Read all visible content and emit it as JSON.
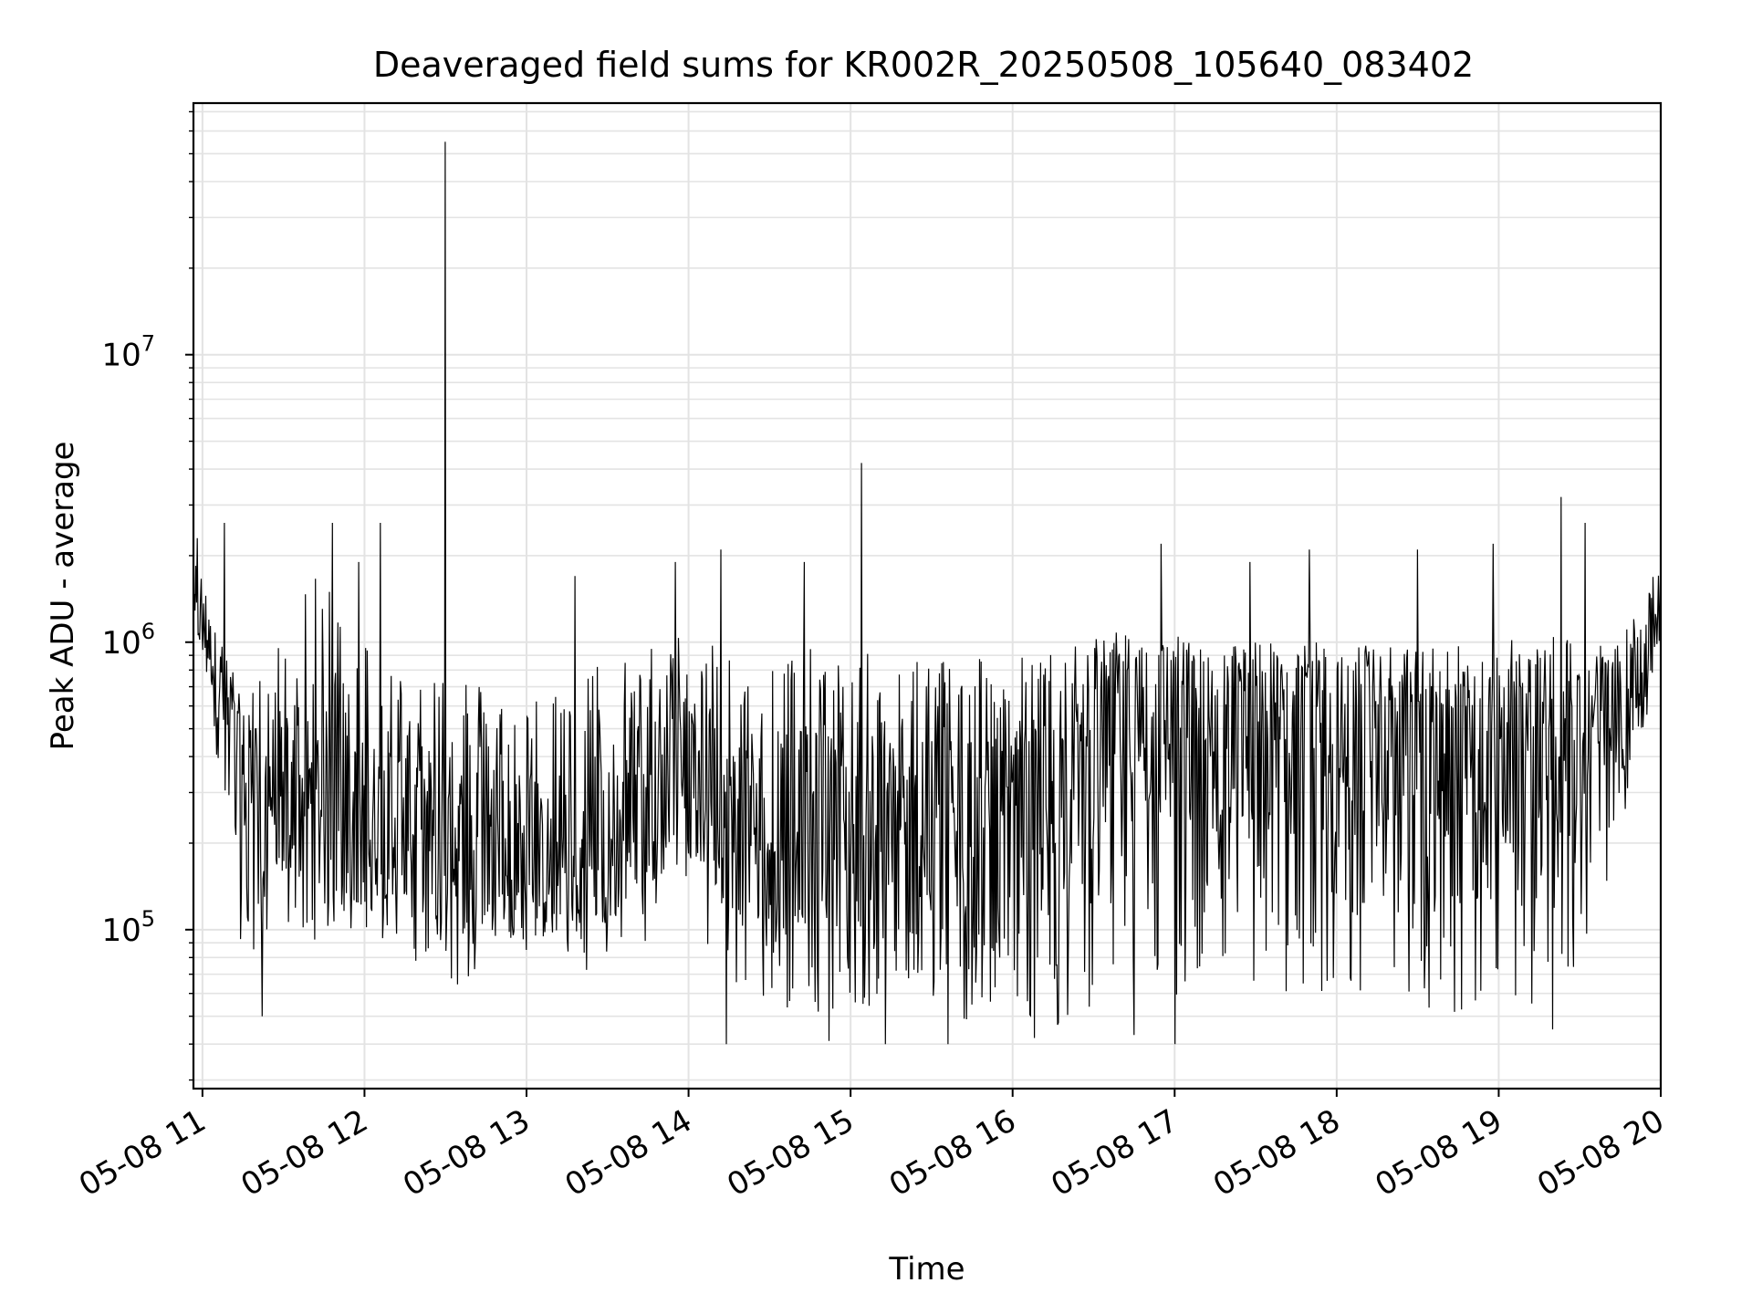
{
  "chart_data": {
    "type": "line",
    "title": "Deaveraged field sums for KR002R_20250508_105640_083402",
    "xlabel": "Time",
    "ylabel": "Peak ADU - average",
    "y_scale": "log",
    "ylim": [
      28000,
      75000000
    ],
    "xlim": [
      "2025-05-08 10:56:40",
      "2025-05-08 20:00:00"
    ],
    "x_ticks": [
      {
        "t": "2025-05-08 11:00",
        "label": "05-08 11"
      },
      {
        "t": "2025-05-08 12:00",
        "label": "05-08 12"
      },
      {
        "t": "2025-05-08 13:00",
        "label": "05-08 13"
      },
      {
        "t": "2025-05-08 14:00",
        "label": "05-08 14"
      },
      {
        "t": "2025-05-08 15:00",
        "label": "05-08 15"
      },
      {
        "t": "2025-05-08 16:00",
        "label": "05-08 16"
      },
      {
        "t": "2025-05-08 17:00",
        "label": "05-08 17"
      },
      {
        "t": "2025-05-08 18:00",
        "label": "05-08 18"
      },
      {
        "t": "2025-05-08 19:00",
        "label": "05-08 19"
      },
      {
        "t": "2025-05-08 20:00",
        "label": "05-08 20"
      }
    ],
    "y_ticks": [
      {
        "value": 100000,
        "mantissa": "10",
        "exponent": "5"
      },
      {
        "value": 1000000,
        "mantissa": "10",
        "exponent": "6"
      },
      {
        "value": 10000000,
        "mantissa": "10",
        "exponent": "7"
      }
    ],
    "grid": true,
    "line_color": "#000000",
    "grid_color": "#e3e3e3",
    "series": [
      {
        "x": [
          "2025-05-08 11:00",
          "2025-05-08 11:15",
          "2025-05-08 11:30",
          "2025-05-08 11:45",
          "2025-05-08 12:00",
          "2025-05-08 12:15",
          "2025-05-08 12:30",
          "2025-05-08 12:45",
          "2025-05-08 13:00",
          "2025-05-08 13:15",
          "2025-05-08 13:30",
          "2025-05-08 13:45",
          "2025-05-08 14:00",
          "2025-05-08 14:15",
          "2025-05-08 14:30",
          "2025-05-08 14:45",
          "2025-05-08 15:00",
          "2025-05-08 15:15",
          "2025-05-08 15:30",
          "2025-05-08 15:45",
          "2025-05-08 16:00",
          "2025-05-08 16:15",
          "2025-05-08 16:30",
          "2025-05-08 16:45",
          "2025-05-08 17:00",
          "2025-05-08 17:15",
          "2025-05-08 17:30",
          "2025-05-08 17:45",
          "2025-05-08 18:00",
          "2025-05-08 18:15",
          "2025-05-08 18:30",
          "2025-05-08 18:45",
          "2025-05-08 19:00",
          "2025-05-08 19:15",
          "2025-05-08 19:30",
          "2025-05-08 19:45",
          "2025-05-08 20:00"
        ],
        "values": [
          1200000,
          350000,
          300000,
          260000,
          240000,
          250000,
          200000,
          190000,
          160000,
          170000,
          190000,
          280000,
          320000,
          260000,
          240000,
          230000,
          220000,
          210000,
          200000,
          190000,
          210000,
          260000,
          450000,
          520000,
          480000,
          430000,
          460000,
          470000,
          420000,
          400000,
          380000,
          350000,
          360000,
          420000,
          460000,
          520000,
          1300000
        ],
        "upper": [
          1900000,
          600000,
          1100000,
          1900000,
          1100000,
          800000,
          1000000,
          700000,
          650000,
          800000,
          900000,
          1000000,
          1100000,
          1100000,
          950000,
          950000,
          900000,
          950000,
          950000,
          1000000,
          900000,
          950000,
          1000000,
          1000000,
          1050000,
          1000000,
          1000000,
          1000000,
          1000000,
          1000000,
          950000,
          1000000,
          1000000,
          1100000,
          1050000,
          1000000,
          2000000
        ],
        "lower": [
          900000,
          80000,
          100000,
          90000,
          100000,
          75000,
          65000,
          60000,
          80000,
          70000,
          75000,
          90000,
          120000,
          55000,
          52000,
          50000,
          55000,
          50000,
          48000,
          45000,
          46000,
          45000,
          48000,
          60000,
          52000,
          55000,
          52000,
          58000,
          55000,
          52000,
          52000,
          50000,
          55000,
          55000,
          60000,
          200000,
          900000
        ]
      }
    ],
    "peaks": [
      {
        "t": "2025-05-08 10:58",
        "value": 2300000
      },
      {
        "t": "2025-05-08 11:08",
        "value": 2600000
      },
      {
        "t": "2025-05-08 11:48",
        "value": 2600000
      },
      {
        "t": "2025-05-08 11:58",
        "value": 1900000
      },
      {
        "t": "2025-05-08 12:06",
        "value": 2600000
      },
      {
        "t": "2025-05-08 12:30",
        "value": 55000000
      },
      {
        "t": "2025-05-08 13:18",
        "value": 1700000
      },
      {
        "t": "2025-05-08 13:55",
        "value": 1900000
      },
      {
        "t": "2025-05-08 14:12",
        "value": 2100000
      },
      {
        "t": "2025-05-08 14:43",
        "value": 1900000
      },
      {
        "t": "2025-05-08 15:04",
        "value": 4200000
      },
      {
        "t": "2025-05-08 16:55",
        "value": 2200000
      },
      {
        "t": "2025-05-08 17:28",
        "value": 1900000
      },
      {
        "t": "2025-05-08 17:50",
        "value": 2100000
      },
      {
        "t": "2025-05-08 18:30",
        "value": 2100000
      },
      {
        "t": "2025-05-08 18:58",
        "value": 2200000
      },
      {
        "t": "2025-05-08 19:23",
        "value": 3200000
      },
      {
        "t": "2025-05-08 19:32",
        "value": 2600000
      },
      {
        "t": "2025-05-08 20:00",
        "value": 2000000
      }
    ],
    "dips": [
      {
        "t": "2025-05-08 11:22",
        "value": 50000
      },
      {
        "t": "2025-05-08 14:14",
        "value": 40000
      },
      {
        "t": "2025-05-08 14:52",
        "value": 41000
      },
      {
        "t": "2025-05-08 15:13",
        "value": 40000
      },
      {
        "t": "2025-05-08 15:36",
        "value": 40000
      },
      {
        "t": "2025-05-08 16:08",
        "value": 42000
      },
      {
        "t": "2025-05-08 16:45",
        "value": 43000
      },
      {
        "t": "2025-05-08 17:00",
        "value": 40000
      },
      {
        "t": "2025-05-08 19:20",
        "value": 45000
      }
    ]
  }
}
